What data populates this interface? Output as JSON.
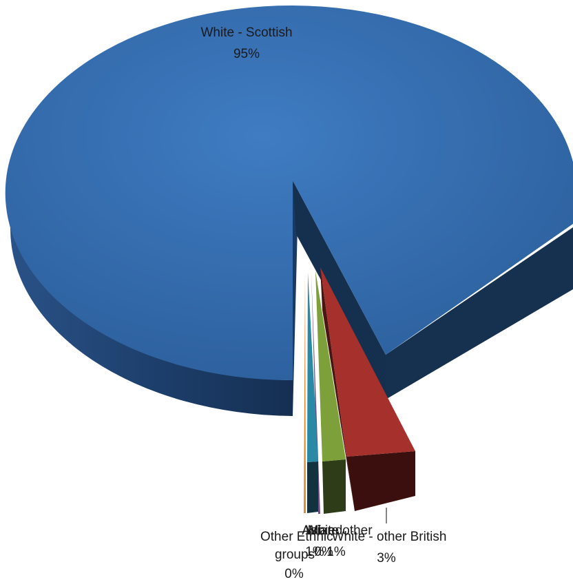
{
  "chart_data": {
    "type": "pie",
    "style": "3d-exploded",
    "title": "",
    "slices": [
      {
        "name": "White - Scottish",
        "value": 95,
        "label": "95%",
        "color": "#356db0"
      },
      {
        "name": "White - other British",
        "value": 3,
        "label": "3%",
        "color": "#a5302c"
      },
      {
        "name": "White other",
        "value": 1,
        "label": "1%",
        "color": "#7da03a"
      },
      {
        "name": "Mixed",
        "value": 0.2,
        "label": "0%",
        "color": "#6a4d8c"
      },
      {
        "name": "Asian",
        "value": 1,
        "label": "1%",
        "color": "#2a8aa5"
      },
      {
        "name": "Other ethnic groups",
        "value": 0.2,
        "label": "0%",
        "color": "#e08a2e"
      }
    ]
  }
}
